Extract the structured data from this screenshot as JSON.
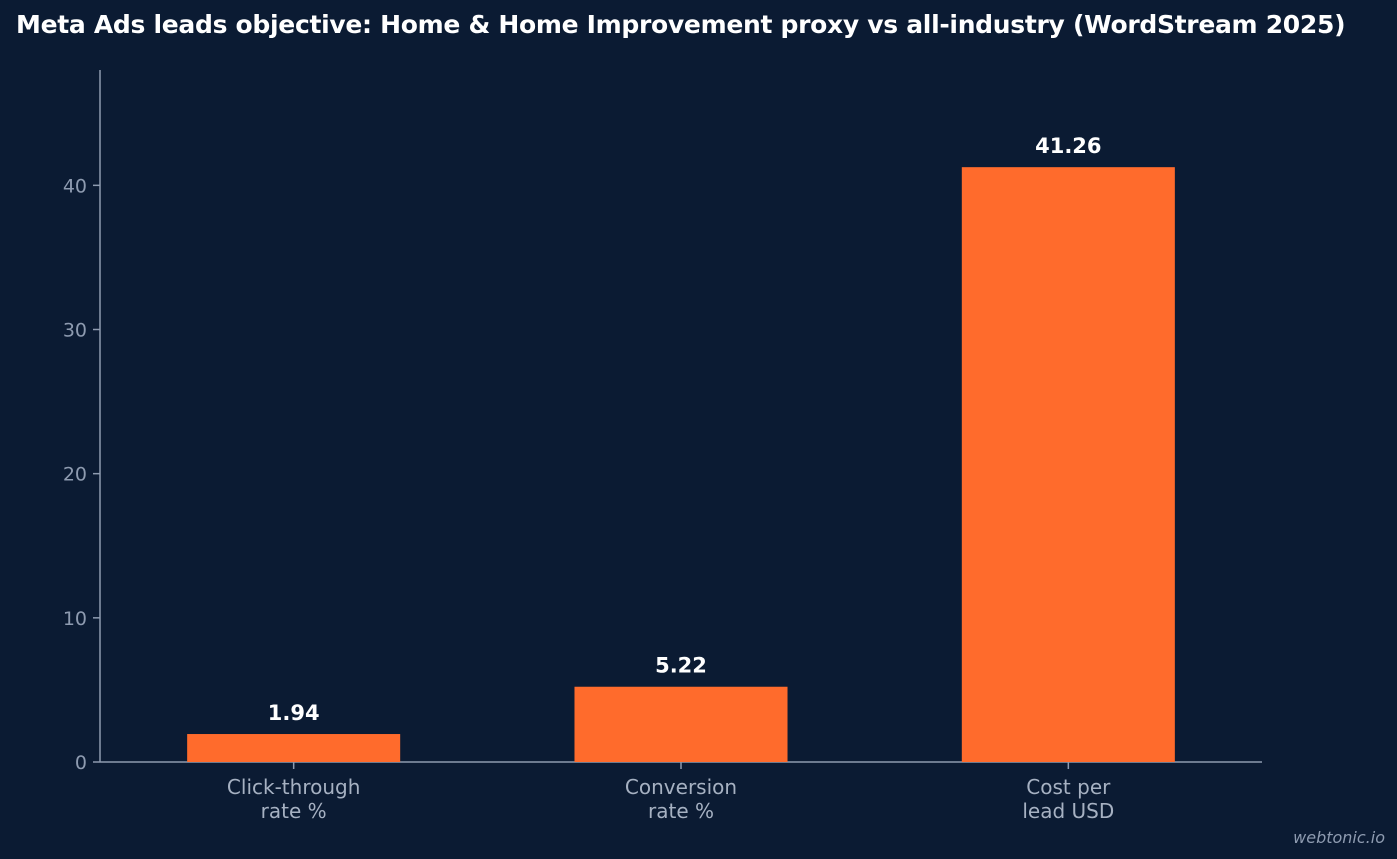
{
  "chart_data": {
    "type": "bar",
    "title": "Meta Ads leads objective: Home & Home Improvement proxy vs all-industry (WordStream 2025)",
    "categories": [
      [
        "Click-through",
        "rate %"
      ],
      [
        "Conversion",
        "rate %"
      ],
      [
        "Cost per",
        "lead USD"
      ]
    ],
    "values": [
      1.94,
      5.22,
      41.26
    ],
    "value_labels": [
      "1.94",
      "5.22",
      "41.26"
    ],
    "yticks": [
      0,
      10,
      20,
      30,
      40
    ],
    "ylim": [
      0,
      48
    ],
    "xlabel": "",
    "ylabel": "",
    "grid": false,
    "bar_color": "#ff6b2c",
    "axis_color": "#8e9bb0",
    "background_color": "#0b1b33"
  },
  "watermark": "webtonic.io"
}
